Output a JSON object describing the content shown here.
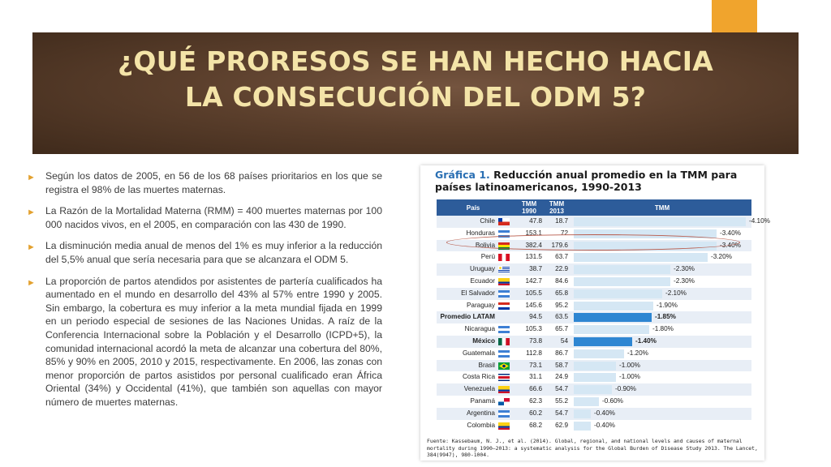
{
  "slide": {
    "title_line1": "¿QUÉ PRORESOS SE HAN HECHO HACIA",
    "title_line2": "LA CONSECUCIÓN DEL ODM 5?",
    "colors": {
      "title_band": "#5b3f2c",
      "title_text": "#f4e4a8",
      "accent": "#f0a42d",
      "bullet_arrow": "#e3a12f"
    }
  },
  "bullets": [
    "Según los datos de 2005, en 56 de los 68 países prioritarios en los que se registra el 98% de las muertes maternas.",
    "La Razón de la Mortalidad Materna (RMM) = 400 muertes maternas por 100 000 nacidos vivos, en el 2005, en comparación con las 430 de 1990.",
    "La disminución media anual de menos del 1% es muy inferior a la reducción del 5,5% anual que sería necesaria para que se alcanzara el ODM 5.",
    "La proporción de partos atendidos por asistentes de partería cualificados ha aumentado en el mundo en desarrollo del 43% al 57% entre 1990 y 2005. Sin embargo, la cobertura es muy inferior a la meta mundial fijada en 1999 en un periodo especial de sesiones de las Naciones Unidas. A raíz de la Conferencia Internacional sobre la Población y el Desarrollo (ICPD+5), la comunidad internacional acordó la meta de alcanzar una cobertura del 80%, 85% y 90% en 2005, 2010 y 2015, respectivamente. En 2006, las zonas con menor proporción de partos asistidos por personal cualificado eran África Oriental (34%) y Occidental (41%), que también son aquellas con mayor número de muertes maternas."
  ],
  "chart_panel": {
    "title_label": "Gráfica 1.",
    "title_text": "Reducción anual promedio en la TMM para países latinoamericanos, 1990-2013",
    "header": {
      "country": "País",
      "col1990": "TMM 1990",
      "col2013": "TMM 2013",
      "bar": "TMM"
    },
    "source": "Fuente: Kassebaum, N. J., et al. (2014). Global, regional, and national levels and causes of maternal mortality during 1990–2013: a systematic analysis for the Global Burden of Disease Study 2013. The Lancet, 384(9947), 980-1004."
  },
  "chart_data": {
    "type": "table",
    "title": "Reducción anual promedio en la TMM para países latinoamericanos, 1990-2013",
    "columns": [
      "País",
      "TMM 1990",
      "TMM 2013",
      "TMM"
    ],
    "bar_max": 4.1,
    "rows": [
      {
        "country": "Chile",
        "tmm1990": "47.8",
        "tmm2013": "18.7",
        "pct": "-4.10%",
        "value": 4.1,
        "bold": false,
        "flag": "chile"
      },
      {
        "country": "Honduras",
        "tmm1990": "153.1",
        "tmm2013": "72",
        "pct": "-3.40%",
        "value": 3.4,
        "bold": false,
        "flag": "honduras"
      },
      {
        "country": "Bolivia",
        "tmm1990": "382.4",
        "tmm2013": "179.6",
        "pct": "-3.40%",
        "value": 3.4,
        "bold": false,
        "flag": "bolivia"
      },
      {
        "country": "Perú",
        "tmm1990": "131.5",
        "tmm2013": "63.7",
        "pct": "-3.20%",
        "value": 3.2,
        "bold": false,
        "flag": "peru"
      },
      {
        "country": "Uruguay",
        "tmm1990": "38.7",
        "tmm2013": "22.9",
        "pct": "-2.30%",
        "value": 2.3,
        "bold": false,
        "flag": "uruguay"
      },
      {
        "country": "Ecuador",
        "tmm1990": "142.7",
        "tmm2013": "84.6",
        "pct": "-2.30%",
        "value": 2.3,
        "bold": false,
        "flag": "ecuador"
      },
      {
        "country": "El Salvador",
        "tmm1990": "105.5",
        "tmm2013": "65.8",
        "pct": "-2.10%",
        "value": 2.1,
        "bold": false,
        "flag": "elsalvador"
      },
      {
        "country": "Paraguay",
        "tmm1990": "145.6",
        "tmm2013": "95.2",
        "pct": "-1.90%",
        "value": 1.9,
        "bold": false,
        "flag": "paraguay"
      },
      {
        "country": "Promedio LATAM",
        "tmm1990": "94.5",
        "tmm2013": "63.5",
        "pct": "-1.85%",
        "value": 1.85,
        "bold": true,
        "flag": ""
      },
      {
        "country": "Nicaragua",
        "tmm1990": "105.3",
        "tmm2013": "65.7",
        "pct": "-1.80%",
        "value": 1.8,
        "bold": false,
        "flag": "nicaragua"
      },
      {
        "country": "México",
        "tmm1990": "73.8",
        "tmm2013": "54",
        "pct": "-1.40%",
        "value": 1.4,
        "bold": true,
        "flag": "mexico"
      },
      {
        "country": "Guatemala",
        "tmm1990": "112.8",
        "tmm2013": "86.7",
        "pct": "-1.20%",
        "value": 1.2,
        "bold": false,
        "flag": "guatemala"
      },
      {
        "country": "Brasil",
        "tmm1990": "73.1",
        "tmm2013": "58.7",
        "pct": "-1.00%",
        "value": 1.0,
        "bold": false,
        "flag": "brasil"
      },
      {
        "country": "Costa Rica",
        "tmm1990": "31.1",
        "tmm2013": "24.9",
        "pct": "-1.00%",
        "value": 1.0,
        "bold": false,
        "flag": "costarica"
      },
      {
        "country": "Venezuela",
        "tmm1990": "66.6",
        "tmm2013": "54.7",
        "pct": "-0.90%",
        "value": 0.9,
        "bold": false,
        "flag": "venezuela"
      },
      {
        "country": "Panamá",
        "tmm1990": "62.3",
        "tmm2013": "55.2",
        "pct": "-0.60%",
        "value": 0.6,
        "bold": false,
        "flag": "panama"
      },
      {
        "country": "Argentina",
        "tmm1990": "60.2",
        "tmm2013": "54.7",
        "pct": "-0.40%",
        "value": 0.4,
        "bold": false,
        "flag": "argentina"
      },
      {
        "country": "Colombia",
        "tmm1990": "68.2",
        "tmm2013": "62.9",
        "pct": "-0.40%",
        "value": 0.4,
        "bold": false,
        "flag": "colombia"
      }
    ],
    "highlighted_row": "Bolivia"
  }
}
